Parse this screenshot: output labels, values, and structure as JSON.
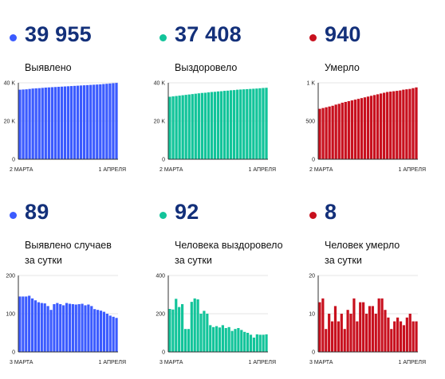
{
  "panels": [
    {
      "value": "39 955",
      "label": "Выявлено",
      "color": "#3b5bff",
      "ymax": 40000,
      "yticks": [
        {
          "v": 0,
          "t": "0"
        },
        {
          "v": 20000,
          "t": "20 K"
        },
        {
          "v": 40000,
          "t": "40 K"
        }
      ],
      "x_start": "2 МАРТА",
      "x_end": "1 АПРЕЛЯ",
      "values": [
        36400,
        36500,
        36600,
        36800,
        37000,
        37100,
        37200,
        37350,
        37500,
        37600,
        37700,
        37800,
        37900,
        38000,
        38100,
        38200,
        38300,
        38400,
        38500,
        38600,
        38700,
        38800,
        38900,
        39000,
        39100,
        39200,
        39350,
        39500,
        39650,
        39800,
        39955
      ]
    },
    {
      "value": "37 408",
      "label": "Выздоровело",
      "color": "#12c49a",
      "ymax": 40000,
      "yticks": [
        {
          "v": 0,
          "t": "0"
        },
        {
          "v": 20000,
          "t": "20 K"
        },
        {
          "v": 40000,
          "t": "40 K"
        }
      ],
      "x_start": "2 МАРТА",
      "x_end": "1 АПРЕЛЯ",
      "values": [
        32700,
        32900,
        33100,
        33300,
        33500,
        33700,
        33900,
        34100,
        34300,
        34500,
        34700,
        34800,
        35000,
        35200,
        35300,
        35500,
        35600,
        35800,
        35900,
        36100,
        36200,
        36400,
        36500,
        36600,
        36700,
        36800,
        36900,
        37000,
        37150,
        37300,
        37408
      ]
    },
    {
      "value": "940",
      "label": "Умерло",
      "color": "#c8101e",
      "ymax": 1000,
      "yticks": [
        {
          "v": 0,
          "t": "0"
        },
        {
          "v": 500,
          "t": "500"
        },
        {
          "v": 1000,
          "t": "1 K"
        }
      ],
      "x_start": "2 МАРТА",
      "x_end": "1 АПРЕЛЯ",
      "values": [
        660,
        670,
        680,
        690,
        700,
        715,
        725,
        740,
        750,
        760,
        770,
        780,
        790,
        800,
        810,
        820,
        830,
        840,
        850,
        860,
        870,
        880,
        885,
        890,
        895,
        900,
        910,
        915,
        920,
        930,
        940
      ]
    },
    {
      "value": "89",
      "label": "Выявлено случаев\nза сутки",
      "color": "#3b5bff",
      "ymax": 200,
      "yticks": [
        {
          "v": 0,
          "t": "0"
        },
        {
          "v": 100,
          "t": "100"
        },
        {
          "v": 200,
          "t": "200"
        }
      ],
      "x_start": "3 МАРТА",
      "x_end": "1 АПРЕЛЯ",
      "values": [
        145,
        145,
        145,
        147,
        140,
        135,
        130,
        128,
        127,
        120,
        110,
        125,
        128,
        125,
        122,
        128,
        126,
        125,
        124,
        125,
        126,
        122,
        124,
        120,
        112,
        110,
        108,
        105,
        100,
        95,
        92,
        89
      ]
    },
    {
      "value": "92",
      "label": "Человека выздоровело\nза сутки",
      "color": "#12c49a",
      "ymax": 400,
      "yticks": [
        {
          "v": 0,
          "t": "0"
        },
        {
          "v": 200,
          "t": "200"
        },
        {
          "v": 400,
          "t": "400"
        }
      ],
      "x_start": "3 МАРТА",
      "x_end": "1 АПРЕЛЯ",
      "values": [
        225,
        222,
        278,
        235,
        250,
        120,
        120,
        262,
        280,
        275,
        200,
        215,
        200,
        140,
        130,
        135,
        128,
        140,
        125,
        130,
        110,
        120,
        125,
        115,
        105,
        100,
        90,
        75,
        92,
        90,
        90,
        92
      ]
    },
    {
      "value": "8",
      "label": "Человек умерло\nза сутки",
      "color": "#c8101e",
      "ymax": 20,
      "yticks": [
        {
          "v": 0,
          "t": "0"
        },
        {
          "v": 10,
          "t": "10"
        },
        {
          "v": 20,
          "t": "20"
        }
      ],
      "x_start": "3 МАРТА",
      "x_end": "1 АПРЕЛЯ",
      "values": [
        13,
        14,
        6,
        10,
        8,
        12,
        8,
        10,
        6,
        11,
        10,
        14,
        8,
        13,
        13,
        10,
        12,
        12,
        10,
        14,
        14,
        11,
        9,
        6,
        8,
        9,
        8,
        7,
        9,
        10,
        8,
        8
      ]
    }
  ],
  "chart_data": [
    {
      "type": "bar",
      "title": "Выявлено",
      "x_range": [
        "2 МАРТА",
        "1 АПРЕЛЯ"
      ],
      "ylim": [
        0,
        40000
      ],
      "values": [
        36400,
        36500,
        36600,
        36800,
        37000,
        37100,
        37200,
        37350,
        37500,
        37600,
        37700,
        37800,
        37900,
        38000,
        38100,
        38200,
        38300,
        38400,
        38500,
        38600,
        38700,
        38800,
        38900,
        39000,
        39100,
        39200,
        39350,
        39500,
        39650,
        39800,
        39955
      ]
    },
    {
      "type": "bar",
      "title": "Выздоровело",
      "x_range": [
        "2 МАРТА",
        "1 АПРЕЛЯ"
      ],
      "ylim": [
        0,
        40000
      ],
      "values": [
        32700,
        32900,
        33100,
        33300,
        33500,
        33700,
        33900,
        34100,
        34300,
        34500,
        34700,
        34800,
        35000,
        35200,
        35300,
        35500,
        35600,
        35800,
        35900,
        36100,
        36200,
        36400,
        36500,
        36600,
        36700,
        36800,
        36900,
        37000,
        37150,
        37300,
        37408
      ]
    },
    {
      "type": "bar",
      "title": "Умерло",
      "x_range": [
        "2 МАРТА",
        "1 АПРЕЛЯ"
      ],
      "ylim": [
        0,
        1000
      ],
      "values": [
        660,
        670,
        680,
        690,
        700,
        715,
        725,
        740,
        750,
        760,
        770,
        780,
        790,
        800,
        810,
        820,
        830,
        840,
        850,
        860,
        870,
        880,
        885,
        890,
        895,
        900,
        910,
        915,
        920,
        930,
        940
      ]
    },
    {
      "type": "bar",
      "title": "Выявлено случаев за сутки",
      "x_range": [
        "3 МАРТА",
        "1 АПРЕЛЯ"
      ],
      "ylim": [
        0,
        200
      ],
      "values": [
        145,
        145,
        145,
        147,
        140,
        135,
        130,
        128,
        127,
        120,
        110,
        125,
        128,
        125,
        122,
        128,
        126,
        125,
        124,
        125,
        126,
        122,
        124,
        120,
        112,
        110,
        108,
        105,
        100,
        95,
        92,
        89
      ]
    },
    {
      "type": "bar",
      "title": "Человека выздоровело за сутки",
      "x_range": [
        "3 МАРТА",
        "1 АПРЕЛЯ"
      ],
      "ylim": [
        0,
        400
      ],
      "values": [
        225,
        222,
        278,
        235,
        250,
        120,
        120,
        262,
        280,
        275,
        200,
        215,
        200,
        140,
        130,
        135,
        128,
        140,
        125,
        130,
        110,
        120,
        125,
        115,
        105,
        100,
        90,
        75,
        92,
        90,
        90,
        92
      ]
    },
    {
      "type": "bar",
      "title": "Человек умерло за сутки",
      "x_range": [
        "3 МАРТА",
        "1 АПРЕЛЯ"
      ],
      "ylim": [
        0,
        20
      ],
      "values": [
        13,
        14,
        6,
        10,
        8,
        12,
        8,
        10,
        6,
        11,
        10,
        14,
        8,
        13,
        13,
        10,
        12,
        12,
        10,
        14,
        14,
        11,
        9,
        6,
        8,
        9,
        8,
        7,
        9,
        10,
        8,
        8
      ]
    }
  ]
}
